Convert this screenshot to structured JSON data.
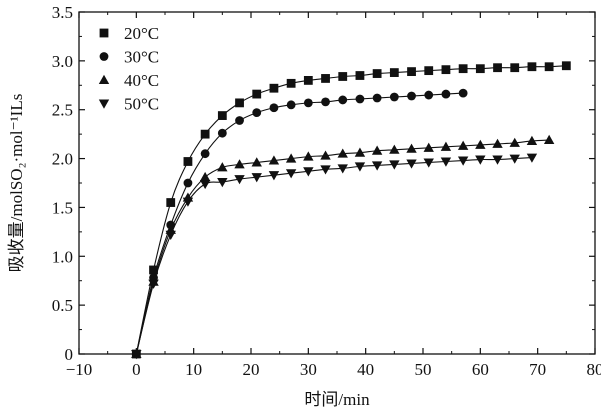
{
  "chart_data": {
    "type": "scatter",
    "xlabel": "时间/min",
    "ylabel": "吸收量/molSO₂·mol⁻¹ILs",
    "xlim": [
      -10,
      80
    ],
    "ylim": [
      0,
      3.5
    ],
    "xticks": [
      -10,
      0,
      10,
      20,
      30,
      40,
      50,
      60,
      70,
      80
    ],
    "yticks": [
      0,
      0.5,
      1.0,
      1.5,
      2.0,
      2.5,
      3.0,
      3.5
    ],
    "xtick_labels": [
      "−10",
      "0",
      "10",
      "20",
      "30",
      "40",
      "50",
      "60",
      "70",
      "80"
    ],
    "ytick_labels": [
      "0",
      "0.5",
      "1.0",
      "1.5",
      "2.0",
      "2.5",
      "3.0",
      "3.5"
    ],
    "grid": false,
    "legend_position": "top-left",
    "series": [
      {
        "name": "20°C",
        "marker": "square",
        "x": [
          0,
          3,
          6,
          9,
          12,
          15,
          18,
          21,
          24,
          27,
          30,
          33,
          36,
          39,
          42,
          45,
          48,
          51,
          54,
          57,
          60,
          63,
          66,
          69,
          72,
          75
        ],
        "y": [
          0,
          0.86,
          1.55,
          1.97,
          2.25,
          2.44,
          2.57,
          2.66,
          2.72,
          2.77,
          2.8,
          2.82,
          2.84,
          2.85,
          2.87,
          2.88,
          2.89,
          2.9,
          2.91,
          2.92,
          2.92,
          2.93,
          2.93,
          2.94,
          2.94,
          2.95
        ]
      },
      {
        "name": "30°C",
        "marker": "circle",
        "x": [
          0,
          3,
          6,
          9,
          12,
          15,
          18,
          21,
          24,
          27,
          30,
          33,
          36,
          39,
          42,
          45,
          48,
          51,
          54,
          57
        ],
        "y": [
          0,
          0.78,
          1.32,
          1.75,
          2.05,
          2.26,
          2.39,
          2.47,
          2.52,
          2.55,
          2.57,
          2.58,
          2.6,
          2.61,
          2.62,
          2.63,
          2.64,
          2.65,
          2.66,
          2.67
        ]
      },
      {
        "name": "40°C",
        "marker": "triangle-up",
        "x": [
          0,
          3,
          6,
          9,
          12,
          15,
          18,
          21,
          24,
          27,
          30,
          33,
          36,
          39,
          42,
          45,
          48,
          51,
          54,
          57,
          60,
          63,
          66,
          69,
          72
        ],
        "y": [
          0,
          0.74,
          1.27,
          1.6,
          1.81,
          1.91,
          1.94,
          1.96,
          1.98,
          2.0,
          2.02,
          2.03,
          2.05,
          2.06,
          2.08,
          2.09,
          2.1,
          2.11,
          2.12,
          2.13,
          2.14,
          2.15,
          2.16,
          2.18,
          2.19
        ]
      },
      {
        "name": "50°C",
        "marker": "triangle-down",
        "x": [
          0,
          3,
          6,
          9,
          12,
          15,
          18,
          21,
          24,
          27,
          30,
          33,
          36,
          39,
          42,
          45,
          48,
          51,
          54,
          57,
          60,
          63,
          66,
          69
        ],
        "y": [
          0,
          0.72,
          1.22,
          1.56,
          1.74,
          1.76,
          1.79,
          1.81,
          1.83,
          1.85,
          1.87,
          1.89,
          1.9,
          1.92,
          1.93,
          1.94,
          1.95,
          1.96,
          1.97,
          1.98,
          1.99,
          1.99,
          2.0,
          2.01
        ]
      }
    ],
    "colors": {
      "marks": "#111111",
      "axis": "#111111",
      "background": "#ffffff"
    }
  }
}
